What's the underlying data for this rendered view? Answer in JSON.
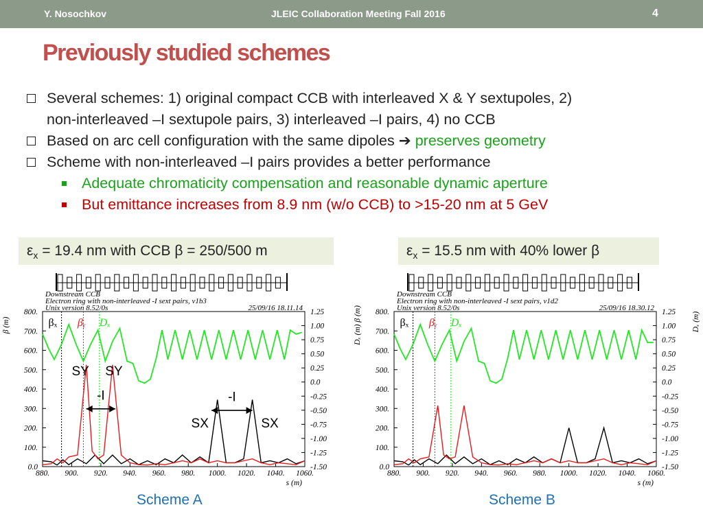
{
  "header": {
    "author": "Y. Nosochkov",
    "meeting": "JLEIC Collaboration Meeting Fall 2016",
    "page_number": "4",
    "bg_color": "#8c9a8a"
  },
  "title": "Previously studied schemes",
  "bullets": [
    {
      "text": "Several schemes: 1) original compact CCB with interleaved X & Y sextupoles, 2)"
    },
    {
      "text": "non-interleaved –I sextupole pairs, 3) interleaved –I pairs, 4) no CCB"
    },
    {
      "text": "Based on arc cell configuration with the same dipoles ",
      "arrow": "➔",
      "highlight": " preserves geometry"
    },
    {
      "text": "Scheme with non-interleaved –I pairs provides a better performance"
    },
    {
      "text": "Adequate chromaticity compensation and reasonable dynamic aperture"
    },
    {
      "text": "But emittance increases from 8.9 nm (w/o CCB) to >15-20 nm at 5 GeV"
    }
  ],
  "boxes": {
    "a": {
      "eps": "ε",
      "sub": "x",
      "text": " = 19.4 nm with CCB β = 250/500 m"
    },
    "b": {
      "eps": "ε",
      "sub": "x",
      "text": " = 15.5 nm with 40% lower β"
    }
  },
  "scheme_labels": {
    "a": "Scheme A",
    "b": "Scheme B"
  },
  "colors": {
    "title": "#c0504d",
    "green_text": "#1aa31a",
    "red_text": "#c00000",
    "scheme_label": "#1f6fb5",
    "box_bg": "#ebf1de"
  },
  "chart_data": [
    {
      "type": "line",
      "panel": "A",
      "header_lines": [
        "Downstream CCB",
        "Electron ring with non-interleaved -I sext pairs, v1b3",
        "Unix version 8.52/0s"
      ],
      "timestamp": "25/09/16  18.11.14",
      "xlabel": "s (m)",
      "ylabel": "β (m)",
      "y2label": "Dₓ (m)",
      "xlim": [
        880,
        1060
      ],
      "ylim": [
        0,
        800
      ],
      "y2lim": [
        -1.5,
        1.25
      ],
      "xticks": [
        "880.",
        "900.",
        "920.",
        "940.",
        "960.",
        "980.",
        "1000.",
        "1020.",
        "1040.",
        "1060."
      ],
      "yticks": [
        "0.0",
        "100.",
        "200.",
        "300.",
        "400.",
        "500.",
        "600.",
        "700.",
        "800."
      ],
      "y2ticks": [
        "-1.50",
        "-1.25",
        "-1.00",
        "-0.75",
        "-0.50",
        "-0.25",
        "0.0",
        "0.25",
        "0.50",
        "0.75",
        "1.00",
        "1.25"
      ],
      "legend": [
        "βₓ",
        "βᵧ",
        "Dₓ"
      ],
      "annotations": [
        "SY",
        "SY",
        "-I",
        "-I",
        "SX",
        "SX"
      ],
      "series": [
        {
          "name": "betx",
          "color": "#000000",
          "x": [
            880,
            886,
            890,
            894,
            898,
            904,
            910,
            916,
            922,
            928,
            934,
            940,
            946,
            952,
            958,
            964,
            970,
            976,
            982,
            988,
            994,
            1000,
            1006,
            1012,
            1018,
            1024,
            1030,
            1036,
            1042,
            1048,
            1054,
            1060
          ],
          "values": [
            30,
            25,
            8,
            35,
            10,
            40,
            15,
            60,
            15,
            60,
            15,
            40,
            10,
            30,
            10,
            40,
            20,
            60,
            20,
            50,
            20,
            345,
            20,
            20,
            40,
            345,
            20,
            30,
            20,
            40,
            15,
            30
          ]
        },
        {
          "name": "bety",
          "color": "#e8191b",
          "x": [
            880,
            886,
            890,
            894,
            898,
            904,
            910,
            914,
            918,
            922,
            928,
            934,
            940,
            946,
            952,
            958,
            964,
            970,
            976,
            982,
            988,
            994,
            1000,
            1006,
            1012,
            1018,
            1024,
            1030,
            1036,
            1042,
            1048,
            1054,
            1060
          ],
          "values": [
            10,
            15,
            40,
            20,
            50,
            60,
            525,
            80,
            40,
            60,
            525,
            60,
            20,
            10,
            8,
            15,
            10,
            20,
            30,
            20,
            40,
            20,
            30,
            20,
            20,
            30,
            40,
            20,
            10,
            20,
            15,
            10,
            30
          ]
        },
        {
          "name": "dx",
          "color": "#22e822",
          "x": [
            880,
            884,
            888,
            893,
            898,
            903,
            908,
            913,
            918,
            923,
            928,
            933,
            938,
            942,
            946,
            950,
            954,
            958,
            962,
            966,
            971,
            976,
            981,
            986,
            991,
            996,
            1001,
            1006,
            1011,
            1016,
            1021,
            1026,
            1031,
            1036,
            1041,
            1046,
            1050,
            1054,
            1058
          ],
          "values": [
            0.85,
            0.6,
            0.4,
            0.67,
            1.02,
            0.67,
            0.37,
            0.67,
            0.92,
            0.37,
            0.72,
            0.95,
            0.37,
            0.33,
            0.02,
            -0.02,
            0.05,
            0.42,
            0.92,
            0.4,
            0.92,
            0.4,
            0.92,
            0.4,
            0.92,
            0.4,
            0.92,
            0.4,
            0.92,
            0.4,
            0.92,
            0.4,
            0.92,
            0.4,
            0.92,
            0.4,
            0.92,
            0.85,
            0.88
          ]
        }
      ]
    },
    {
      "type": "line",
      "panel": "B",
      "header_lines": [
        "Downstream CCB",
        "Electron ring with non-interleaved -I sext pairs, v1d2",
        "Unix version 8.52/0s"
      ],
      "timestamp": "25/09/16  18.30.12",
      "xlabel": "s (m)",
      "ylabel": "Dₓ (m)  β (m)",
      "y2label": "Dₓ (m)",
      "xlim": [
        880,
        1060
      ],
      "ylim": [
        0,
        800
      ],
      "y2lim": [
        -1.5,
        1.25
      ],
      "xticks": [
        "880.",
        "900.",
        "920.",
        "940.",
        "960.",
        "980.",
        "1000.",
        "1020.",
        "1040.",
        "1060."
      ],
      "yticks": [
        "0.0",
        "100.",
        "200.",
        "300.",
        "400.",
        "500.",
        "600.",
        "700.",
        "800."
      ],
      "y2ticks": [
        "-1.50",
        "-1.25",
        "-1.00",
        "-0.75",
        "-0.50",
        "-0.25",
        "0.0",
        "0.25",
        "0.50",
        "0.75",
        "1.00",
        "1.25"
      ],
      "legend": [
        "βₓ",
        "βᵧ",
        "Dₓ"
      ],
      "series": [
        {
          "name": "betx",
          "color": "#000000",
          "x": [
            880,
            886,
            890,
            894,
            898,
            904,
            910,
            916,
            922,
            928,
            934,
            940,
            946,
            952,
            958,
            964,
            970,
            976,
            982,
            988,
            994,
            1000,
            1006,
            1012,
            1018,
            1024,
            1030,
            1036,
            1042,
            1048,
            1054,
            1060
          ],
          "values": [
            30,
            25,
            8,
            35,
            10,
            40,
            15,
            60,
            15,
            50,
            15,
            40,
            10,
            30,
            10,
            40,
            20,
            50,
            20,
            40,
            20,
            200,
            20,
            20,
            40,
            200,
            20,
            30,
            20,
            40,
            15,
            30
          ]
        },
        {
          "name": "bety",
          "color": "#e8191b",
          "x": [
            880,
            886,
            890,
            894,
            898,
            904,
            910,
            914,
            918,
            922,
            928,
            934,
            940,
            946,
            952,
            958,
            964,
            970,
            976,
            982,
            988,
            994,
            1000,
            1006,
            1012,
            1018,
            1024,
            1030,
            1036,
            1042,
            1048,
            1054,
            1060
          ],
          "values": [
            10,
            15,
            40,
            20,
            40,
            50,
            315,
            60,
            40,
            50,
            315,
            50,
            20,
            10,
            8,
            15,
            10,
            20,
            30,
            20,
            40,
            20,
            30,
            20,
            20,
            30,
            40,
            20,
            10,
            20,
            15,
            10,
            30
          ]
        },
        {
          "name": "dx",
          "color": "#22e822",
          "x": [
            880,
            884,
            888,
            893,
            898,
            903,
            908,
            913,
            918,
            923,
            928,
            933,
            938,
            942,
            946,
            950,
            954,
            958,
            962,
            966,
            971,
            976,
            981,
            986,
            991,
            996,
            1001,
            1006,
            1011,
            1016,
            1021,
            1026,
            1031,
            1036,
            1041,
            1046,
            1050,
            1054,
            1058
          ],
          "values": [
            0.85,
            0.6,
            0.4,
            0.67,
            1.02,
            0.67,
            0.37,
            0.67,
            0.92,
            0.37,
            0.72,
            0.95,
            0.37,
            0.33,
            0.02,
            -0.02,
            0.05,
            0.42,
            0.92,
            0.4,
            0.92,
            0.4,
            0.92,
            0.4,
            0.92,
            0.4,
            0.92,
            0.4,
            0.92,
            0.4,
            0.92,
            0.4,
            0.92,
            0.4,
            0.92,
            0.4,
            0.92,
            0.7,
            0.7
          ]
        }
      ]
    }
  ]
}
